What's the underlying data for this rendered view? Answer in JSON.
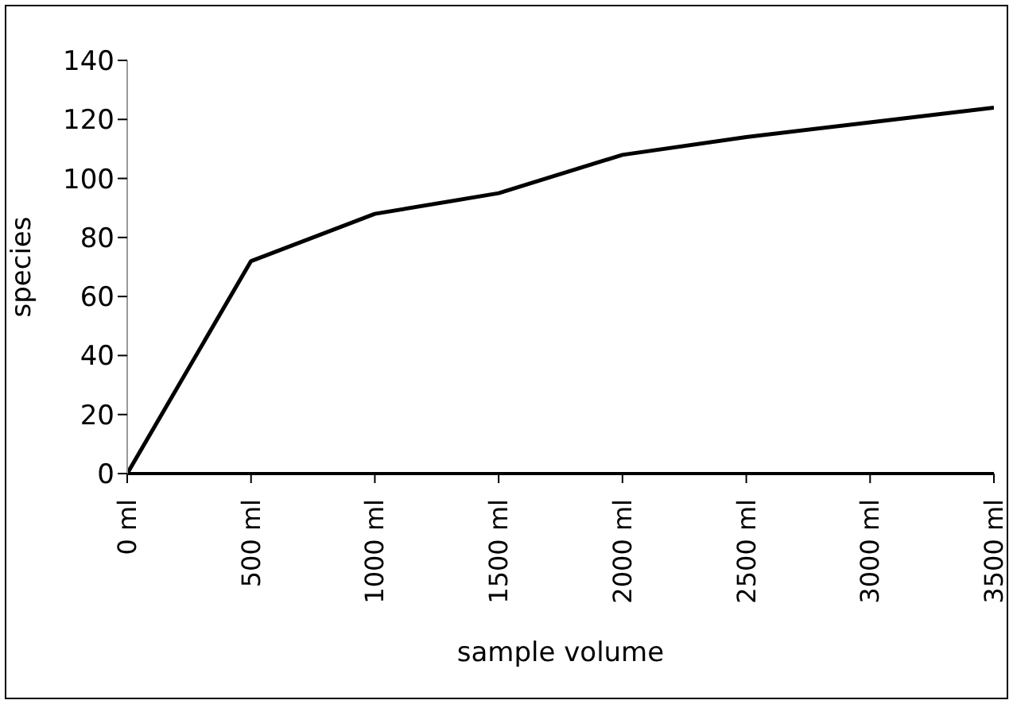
{
  "chart_data": {
    "type": "line",
    "xlabel": "sample volume",
    "ylabel": "species",
    "x": [
      0,
      500,
      1000,
      1500,
      2000,
      2500,
      3000,
      3500
    ],
    "series": [
      {
        "color": "#000000",
        "values": [
          0,
          72,
          88,
          95,
          108,
          114,
          119,
          124
        ]
      }
    ],
    "xlim": [
      0,
      3500
    ],
    "xticks": [
      {
        "value": 0,
        "label": "0 ml"
      },
      {
        "value": 500,
        "label": "500 ml"
      },
      {
        "value": 1000,
        "label": "1000 ml"
      },
      {
        "value": 1500,
        "label": "1500 ml"
      },
      {
        "value": 2000,
        "label": "2000 ml"
      },
      {
        "value": 2500,
        "label": "2500 ml"
      },
      {
        "value": 3000,
        "label": "3000 ml"
      },
      {
        "value": 3500,
        "label": "3500 ml"
      }
    ],
    "ylim": [
      0,
      140
    ],
    "yticks": [
      0,
      20,
      40,
      60,
      80,
      100,
      120,
      140
    ],
    "grid": false,
    "legend": false,
    "marker": "none",
    "line_style": "solid"
  }
}
